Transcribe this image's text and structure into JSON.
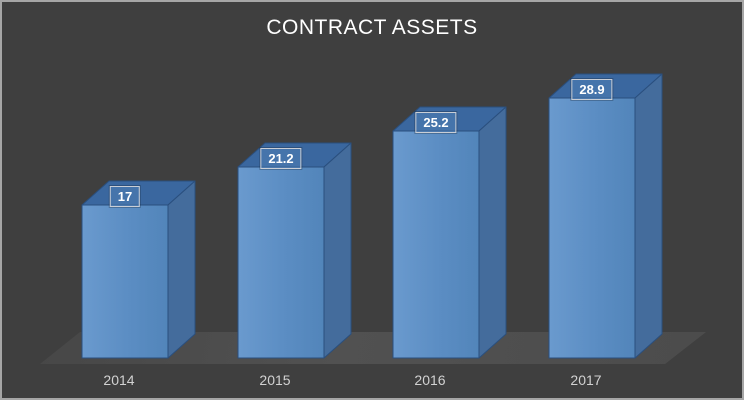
{
  "chart_data": {
    "type": "bar",
    "style": "3d-column",
    "title": "CONTRACT ASSETS",
    "categories": [
      "2014",
      "2015",
      "2016",
      "2017"
    ],
    "values": [
      17,
      21.2,
      25.2,
      28.9
    ],
    "data_labels": [
      "17",
      "21.2",
      "25.2",
      "28.9"
    ],
    "xlabel": "",
    "ylabel": "",
    "value_axis": "hidden",
    "legend": "none",
    "grid": false
  },
  "colors": {
    "background": "#3f3f3f",
    "frame_border": "#a6a6a6",
    "title_text": "#ffffff",
    "category_text": "#d2d2d2",
    "data_label_text": "#ffffff",
    "bar_front": "#5b8dc3",
    "bar_front_light": "#6a9ace",
    "bar_front_dark": "#5285ba",
    "bar_top": "#3a679f",
    "bar_side": "#446c9c",
    "bar_outline": "#2a4f7e",
    "floor": "#4c4c4c"
  }
}
